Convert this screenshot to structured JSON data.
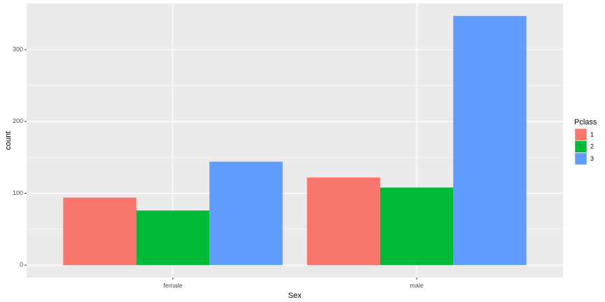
{
  "chart_data": {
    "type": "bar",
    "x_label": "Sex",
    "y_label": "count",
    "legend_title": "Pclass",
    "legend": "right",
    "categories": [
      "female",
      "male"
    ],
    "series": [
      {
        "name": "1",
        "color": "#F8766D",
        "values": [
          94,
          122
        ]
      },
      {
        "name": "2",
        "color": "#00BA38",
        "values": [
          76,
          108
        ]
      },
      {
        "name": "3",
        "color": "#619CFF",
        "values": [
          144,
          347
        ]
      }
    ],
    "ylim": [
      -17.35,
      364.35
    ],
    "yticks": [
      0,
      100,
      200,
      300
    ],
    "y_minor_grid": [
      50,
      150,
      250
    ],
    "grid": true
  }
}
